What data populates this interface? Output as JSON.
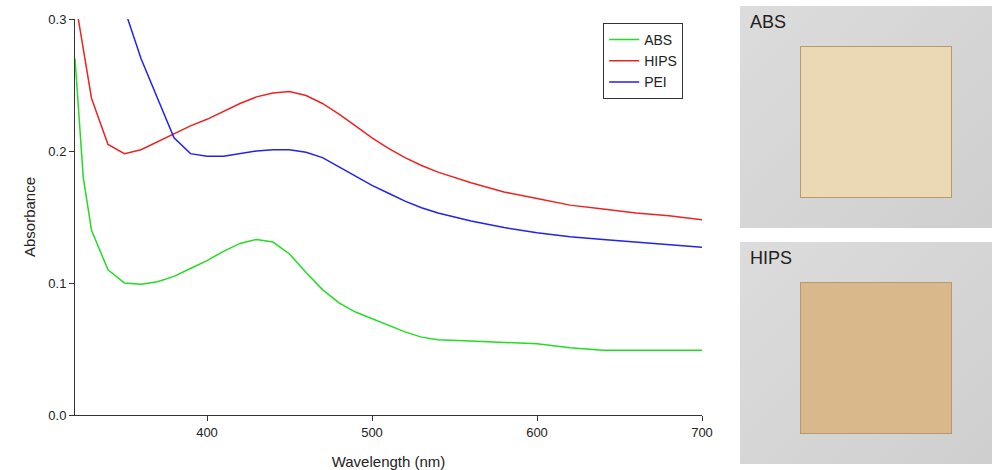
{
  "chart_data": {
    "type": "line",
    "xlabel": "Wavelength (nm)",
    "ylabel": "Absorbance",
    "xlim": [
      320,
      700
    ],
    "xticks": [
      400,
      500,
      600,
      700
    ],
    "ylim": [
      0,
      0.3
    ],
    "yticks": [
      {
        "value": 0,
        "label": "0.0"
      },
      0.1,
      0.2,
      0.3
    ],
    "grid": false,
    "legend": "upper right",
    "series": [
      {
        "name": "ABS",
        "color": "#22dd22",
        "x": [
          320,
          325,
          330,
          340,
          350,
          360,
          370,
          380,
          390,
          400,
          410,
          420,
          430,
          440,
          450,
          460,
          470,
          480,
          490,
          500,
          510,
          520,
          530,
          540,
          560,
          580,
          600,
          620,
          640,
          660,
          680,
          700
        ],
        "values": [
          0.27,
          0.18,
          0.14,
          0.11,
          0.1,
          0.099,
          0.101,
          0.105,
          0.111,
          0.117,
          0.124,
          0.13,
          0.133,
          0.131,
          0.122,
          0.108,
          0.095,
          0.085,
          0.078,
          0.073,
          0.068,
          0.063,
          0.059,
          0.057,
          0.056,
          0.055,
          0.054,
          0.051,
          0.049,
          0.049,
          0.049,
          0.049
        ]
      },
      {
        "name": "HIPS",
        "color": "#ee2222",
        "x": [
          322,
          330,
          340,
          350,
          360,
          370,
          380,
          390,
          400,
          410,
          420,
          430,
          440,
          450,
          460,
          470,
          480,
          490,
          500,
          510,
          520,
          530,
          540,
          560,
          580,
          600,
          620,
          640,
          660,
          680,
          700
        ],
        "values": [
          0.3,
          0.24,
          0.205,
          0.198,
          0.201,
          0.207,
          0.213,
          0.219,
          0.224,
          0.23,
          0.236,
          0.241,
          0.244,
          0.245,
          0.242,
          0.236,
          0.228,
          0.219,
          0.21,
          0.202,
          0.195,
          0.189,
          0.184,
          0.176,
          0.169,
          0.164,
          0.159,
          0.156,
          0.153,
          0.151,
          0.148
        ]
      },
      {
        "name": "PEI",
        "color": "#2222ee",
        "x": [
          352,
          360,
          370,
          380,
          390,
          400,
          410,
          420,
          430,
          440,
          450,
          460,
          470,
          480,
          490,
          500,
          510,
          520,
          530,
          540,
          560,
          580,
          600,
          620,
          640,
          660,
          680,
          700
        ],
        "values": [
          0.3,
          0.27,
          0.24,
          0.21,
          0.198,
          0.196,
          0.196,
          0.198,
          0.2,
          0.201,
          0.201,
          0.199,
          0.195,
          0.188,
          0.181,
          0.174,
          0.168,
          0.162,
          0.157,
          0.153,
          0.147,
          0.142,
          0.138,
          0.135,
          0.133,
          0.131,
          0.129,
          0.127
        ]
      }
    ]
  },
  "photos": [
    {
      "label": "ABS"
    },
    {
      "label": "HIPS"
    }
  ]
}
